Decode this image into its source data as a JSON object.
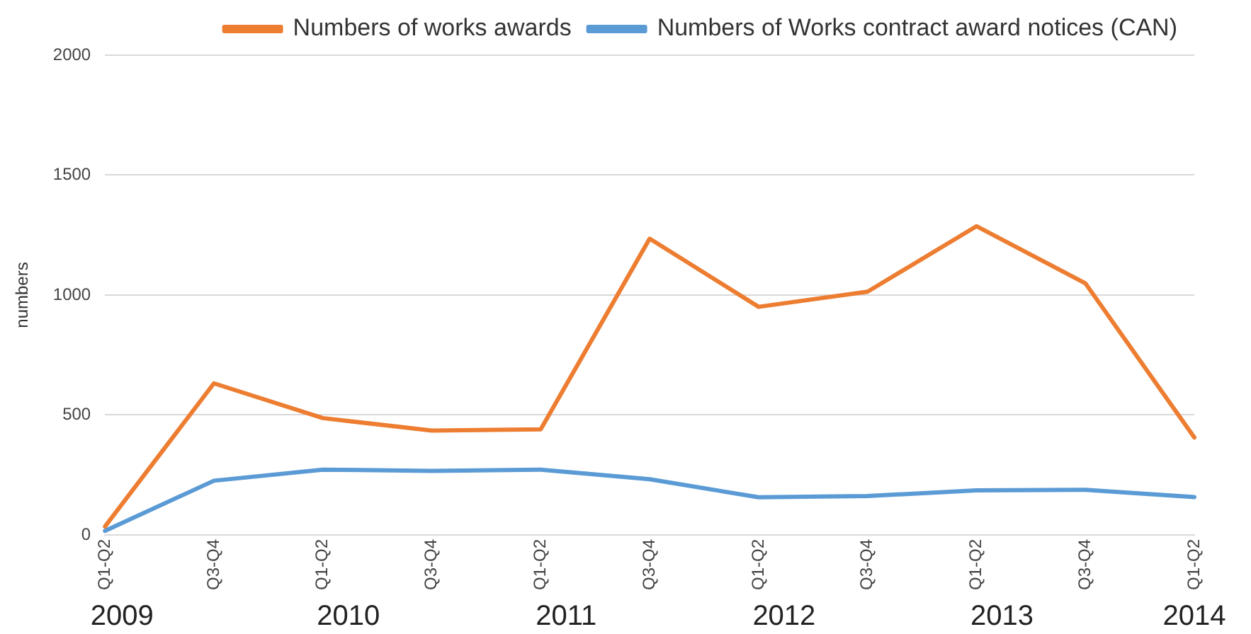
{
  "chart_data": {
    "type": "line",
    "ylabel": "numbers",
    "categories": [
      "Q1-Q2",
      "Q3-Q4",
      "Q1-Q2",
      "Q3-Q4",
      "Q1-Q2",
      "Q3-Q4",
      "Q1-Q2",
      "Q3-Q4",
      "Q1-Q2",
      "Q3-Q4",
      "Q1-Q2"
    ],
    "series": [
      {
        "name": "Numbers of works awards",
        "color": "#ed7d31",
        "values": [
          35,
          632,
          487,
          435,
          440,
          1235,
          951,
          1014,
          1287,
          1049,
          406
        ]
      },
      {
        "name": "Numbers of Works contract award notices (CAN)",
        "color": "#5b9bd5",
        "values": [
          17,
          226,
          272,
          267,
          272,
          232,
          157,
          162,
          186,
          188,
          158
        ]
      }
    ],
    "ylim": [
      0,
      2000
    ],
    "yticks": [
      0,
      500,
      1000,
      1500,
      2000
    ],
    "grid": "y",
    "legend": "top right",
    "marker": "none",
    "line_style": "solid",
    "annotations": [
      "2009",
      "2010",
      "2011",
      "2012",
      "2013",
      "2014"
    ]
  }
}
